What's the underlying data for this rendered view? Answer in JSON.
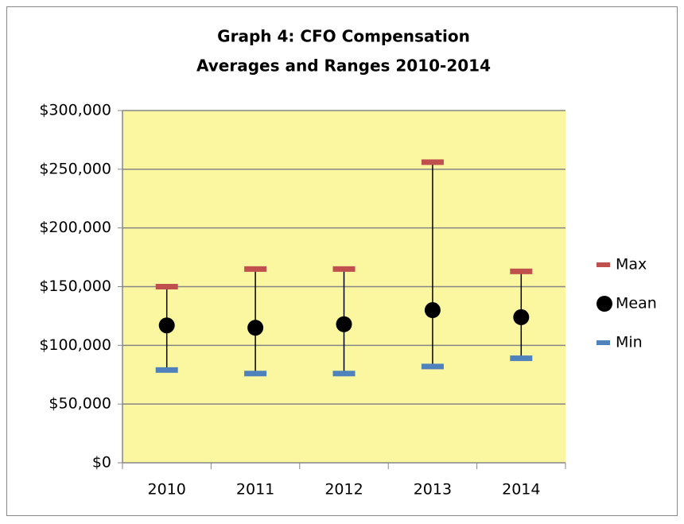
{
  "chart_data": {
    "type": "hilo",
    "title": [
      "Graph 4: CFO Compensation",
      "Averages and Ranges 2010-2014"
    ],
    "categories": [
      "2010",
      "2011",
      "2012",
      "2013",
      "2014"
    ],
    "series": [
      {
        "name": "Max",
        "color": "#c0504d",
        "values": [
          150000,
          165000,
          165000,
          256000,
          163000
        ]
      },
      {
        "name": "Mean",
        "color": "#000000",
        "values": [
          117000,
          115000,
          118000,
          130000,
          124000
        ]
      },
      {
        "name": "Min",
        "color": "#4f81bd",
        "values": [
          79000,
          76000,
          76000,
          82000,
          89000
        ]
      }
    ],
    "ylim": [
      0,
      300000
    ],
    "yticks": [
      {
        "value": 0,
        "label": "$0"
      },
      {
        "value": 50000,
        "label": "$50,000"
      },
      {
        "value": 100000,
        "label": "$100,000"
      },
      {
        "value": 150000,
        "label": "$150,000"
      },
      {
        "value": 200000,
        "label": "$200,000"
      },
      {
        "value": 250000,
        "label": "$250,000"
      },
      {
        "value": 300000,
        "label": "$300,000"
      }
    ],
    "grid": true,
    "legend": "right",
    "plot_background": "#fbf7a0"
  }
}
